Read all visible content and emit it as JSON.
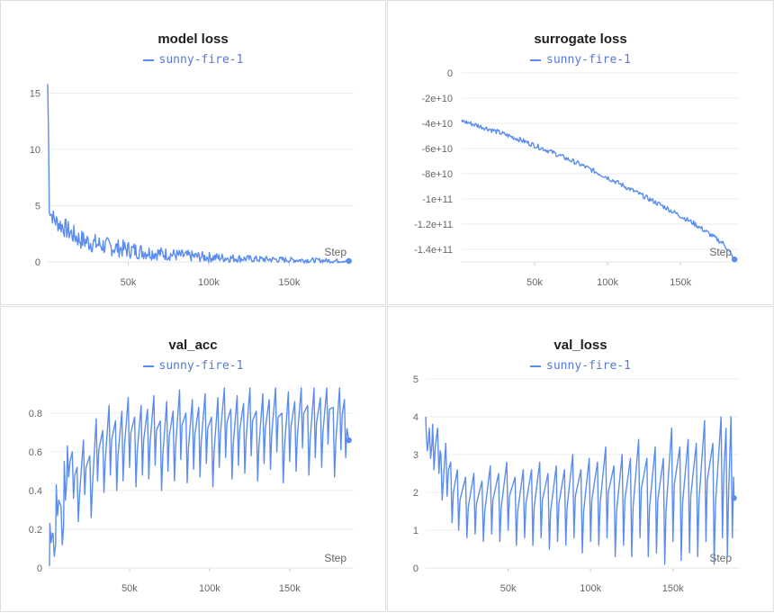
{
  "run_name": "sunny-fire-1",
  "series_color": "#5b8def",
  "chart_data": [
    {
      "type": "line",
      "title": "model loss",
      "xlabel": "Step",
      "ylabel": "",
      "xlim": [
        0,
        190000
      ],
      "ylim": [
        0,
        16
      ],
      "xticks": [
        {
          "v": 50000,
          "label": "50k"
        },
        {
          "v": 100000,
          "label": "100k"
        },
        {
          "v": 150000,
          "label": "150k"
        }
      ],
      "yticks": [
        {
          "v": 0,
          "label": "0"
        },
        {
          "v": 5,
          "label": "5"
        },
        {
          "v": 10,
          "label": "10"
        },
        {
          "v": 15,
          "label": "15"
        }
      ],
      "grid": true,
      "legend_position": "top-center",
      "series": [
        {
          "name": "sunny-fire-1",
          "x": [
            0,
            500,
            1000,
            2000,
            5000,
            10000,
            15000,
            20000,
            30000,
            40000,
            50000,
            60000,
            70000,
            80000,
            90000,
            100000,
            110000,
            120000,
            130000,
            140000,
            150000,
            160000,
            170000,
            180000,
            187000
          ],
          "y": [
            15.8,
            11.5,
            4.6,
            4.3,
            3.6,
            3.1,
            2.5,
            2.0,
            1.6,
            1.3,
            1.1,
            0.9,
            0.75,
            0.6,
            0.5,
            0.42,
            0.36,
            0.3,
            0.25,
            0.22,
            0.18,
            0.16,
            0.13,
            0.1,
            0.08
          ],
          "noise": [
            0,
            0,
            0.6,
            0.7,
            0.8,
            0.9,
            0.9,
            0.9,
            0.9,
            0.8,
            0.8,
            0.7,
            0.6,
            0.55,
            0.5,
            0.45,
            0.4,
            0.35,
            0.3,
            0.3,
            0.25,
            0.25,
            0.2,
            0.2,
            0.1
          ]
        }
      ]
    },
    {
      "type": "line",
      "title": "surrogate loss",
      "xlabel": "Step",
      "ylabel": "",
      "xlim": [
        0,
        190000
      ],
      "ylim": [
        -150000000000,
        0
      ],
      "xticks": [
        {
          "v": 50000,
          "label": "50k"
        },
        {
          "v": 100000,
          "label": "100k"
        },
        {
          "v": 150000,
          "label": "150k"
        }
      ],
      "yticks": [
        {
          "v": 0,
          "label": "0"
        },
        {
          "v": -20000000000,
          "label": "-2e+10"
        },
        {
          "v": -40000000000,
          "label": "-4e+10"
        },
        {
          "v": -60000000000,
          "label": "-6e+10"
        },
        {
          "v": -80000000000,
          "label": "-8e+10"
        },
        {
          "v": -100000000000,
          "label": "-1e+11"
        },
        {
          "v": -120000000000,
          "label": "-1.2e+11"
        },
        {
          "v": -140000000000,
          "label": "-1.4e+11"
        }
      ],
      "grid": true,
      "legend_position": "top-center",
      "series": [
        {
          "name": "sunny-fire-1",
          "x": [
            0,
            20000,
            40000,
            60000,
            80000,
            100000,
            120000,
            140000,
            160000,
            180000,
            187000
          ],
          "y": [
            -38000000000,
            -45000000000,
            -53000000000,
            -62000000000,
            -72000000000,
            -83000000000,
            -95000000000,
            -107000000000,
            -120000000000,
            -136000000000,
            -148000000000
          ],
          "noise": [
            2000000000,
            2000000000,
            2000000000,
            2000000000,
            2000000000,
            2000000000,
            2000000000,
            2000000000,
            2000000000,
            2000000000,
            1000000000
          ]
        }
      ]
    },
    {
      "type": "line",
      "title": "val_acc",
      "xlabel": "Step",
      "ylabel": "",
      "xlim": [
        0,
        190000
      ],
      "ylim": [
        0,
        0.93
      ],
      "xticks": [
        {
          "v": 50000,
          "label": "50k"
        },
        {
          "v": 100000,
          "label": "100k"
        },
        {
          "v": 150000,
          "label": "150k"
        }
      ],
      "yticks": [
        {
          "v": 0,
          "label": "0"
        },
        {
          "v": 0.2,
          "label": "0.2"
        },
        {
          "v": 0.4,
          "label": "0.4"
        },
        {
          "v": 0.6,
          "label": "0.6"
        },
        {
          "v": 0.8,
          "label": "0.8"
        }
      ],
      "grid": true,
      "legend_position": "top-center",
      "series": [
        {
          "name": "sunny-fire-1",
          "x": [
            0,
            1000,
            3000,
            5000,
            8000,
            10000,
            12000,
            15000,
            18000,
            22000,
            26000,
            30000,
            34000,
            38000,
            42000,
            46000,
            50000,
            54000,
            58000,
            62000,
            66000,
            70000,
            74000,
            78000,
            82000,
            86000,
            90000,
            94000,
            98000,
            102000,
            106000,
            110000,
            114000,
            118000,
            122000,
            126000,
            130000,
            134000,
            138000,
            142000,
            146000,
            150000,
            154000,
            158000,
            162000,
            166000,
            170000,
            174000,
            178000,
            182000,
            185000,
            187000
          ],
          "y": [
            0.01,
            0.18,
            0.12,
            0.35,
            0.22,
            0.45,
            0.55,
            0.48,
            0.38,
            0.52,
            0.42,
            0.61,
            0.55,
            0.66,
            0.58,
            0.63,
            0.7,
            0.6,
            0.66,
            0.64,
            0.71,
            0.58,
            0.68,
            0.63,
            0.74,
            0.62,
            0.69,
            0.65,
            0.72,
            0.6,
            0.7,
            0.75,
            0.64,
            0.71,
            0.67,
            0.76,
            0.63,
            0.72,
            0.69,
            0.78,
            0.62,
            0.73,
            0.68,
            0.8,
            0.66,
            0.75,
            0.7,
            0.82,
            0.65,
            0.79,
            0.72,
            0.66
          ],
          "noise": [
            0,
            0.05,
            0.06,
            0.08,
            0.1,
            0.1,
            0.08,
            0.12,
            0.14,
            0.14,
            0.16,
            0.16,
            0.16,
            0.18,
            0.18,
            0.18,
            0.18,
            0.18,
            0.18,
            0.18,
            0.18,
            0.18,
            0.18,
            0.18,
            0.18,
            0.18,
            0.18,
            0.18,
            0.18,
            0.18,
            0.18,
            0.18,
            0.18,
            0.18,
            0.18,
            0.18,
            0.18,
            0.18,
            0.18,
            0.18,
            0.18,
            0.18,
            0.18,
            0.18,
            0.18,
            0.18,
            0.18,
            0.18,
            0.18,
            0.18,
            0.15,
            0
          ]
        }
      ]
    },
    {
      "type": "line",
      "title": "val_loss",
      "xlabel": "Step",
      "ylabel": "",
      "xlim": [
        0,
        190000
      ],
      "ylim": [
        0,
        5
      ],
      "xticks": [
        {
          "v": 50000,
          "label": "50k"
        },
        {
          "v": 100000,
          "label": "100k"
        },
        {
          "v": 150000,
          "label": "150k"
        }
      ],
      "yticks": [
        {
          "v": 0,
          "label": "0"
        },
        {
          "v": 1,
          "label": "1"
        },
        {
          "v": 2,
          "label": "2"
        },
        {
          "v": 3,
          "label": "3"
        },
        {
          "v": 4,
          "label": "4"
        },
        {
          "v": 5,
          "label": "5"
        }
      ],
      "grid": true,
      "legend_position": "top-center",
      "series": [
        {
          "name": "sunny-fire-1",
          "x": [
            0,
            1000,
            3000,
            5000,
            8000,
            10000,
            13000,
            16000,
            20000,
            25000,
            30000,
            35000,
            40000,
            45000,
            50000,
            55000,
            60000,
            65000,
            70000,
            75000,
            80000,
            85000,
            90000,
            95000,
            100000,
            105000,
            110000,
            115000,
            120000,
            125000,
            130000,
            135000,
            140000,
            145000,
            150000,
            155000,
            160000,
            165000,
            170000,
            175000,
            180000,
            183000,
            186000,
            187000
          ],
          "y": [
            4.0,
            3.4,
            3.3,
            3.2,
            3.1,
            2.4,
            2.6,
            2.0,
            1.8,
            1.6,
            1.7,
            1.5,
            1.8,
            1.6,
            1.9,
            1.5,
            1.7,
            1.6,
            1.8,
            1.5,
            1.7,
            1.6,
            1.9,
            1.5,
            1.8,
            1.7,
            2.0,
            1.5,
            1.8,
            1.6,
            2.1,
            1.6,
            1.8,
            1.5,
            2.2,
            1.7,
            1.9,
            1.8,
            2.3,
            1.7,
            2.4,
            2.0,
            2.4,
            1.85
          ],
          "noise": [
            0.2,
            0.3,
            0.4,
            0.6,
            0.6,
            0.6,
            0.7,
            0.8,
            0.8,
            0.8,
            0.8,
            0.8,
            0.9,
            0.9,
            0.9,
            0.9,
            0.9,
            1.0,
            1.0,
            1.0,
            1.0,
            1.0,
            1.1,
            1.1,
            1.1,
            1.1,
            1.2,
            1.2,
            1.2,
            1.3,
            1.3,
            1.3,
            1.4,
            1.4,
            1.5,
            1.5,
            1.5,
            1.5,
            1.6,
            1.6,
            1.6,
            1.7,
            1.6,
            0
          ]
        }
      ]
    }
  ]
}
